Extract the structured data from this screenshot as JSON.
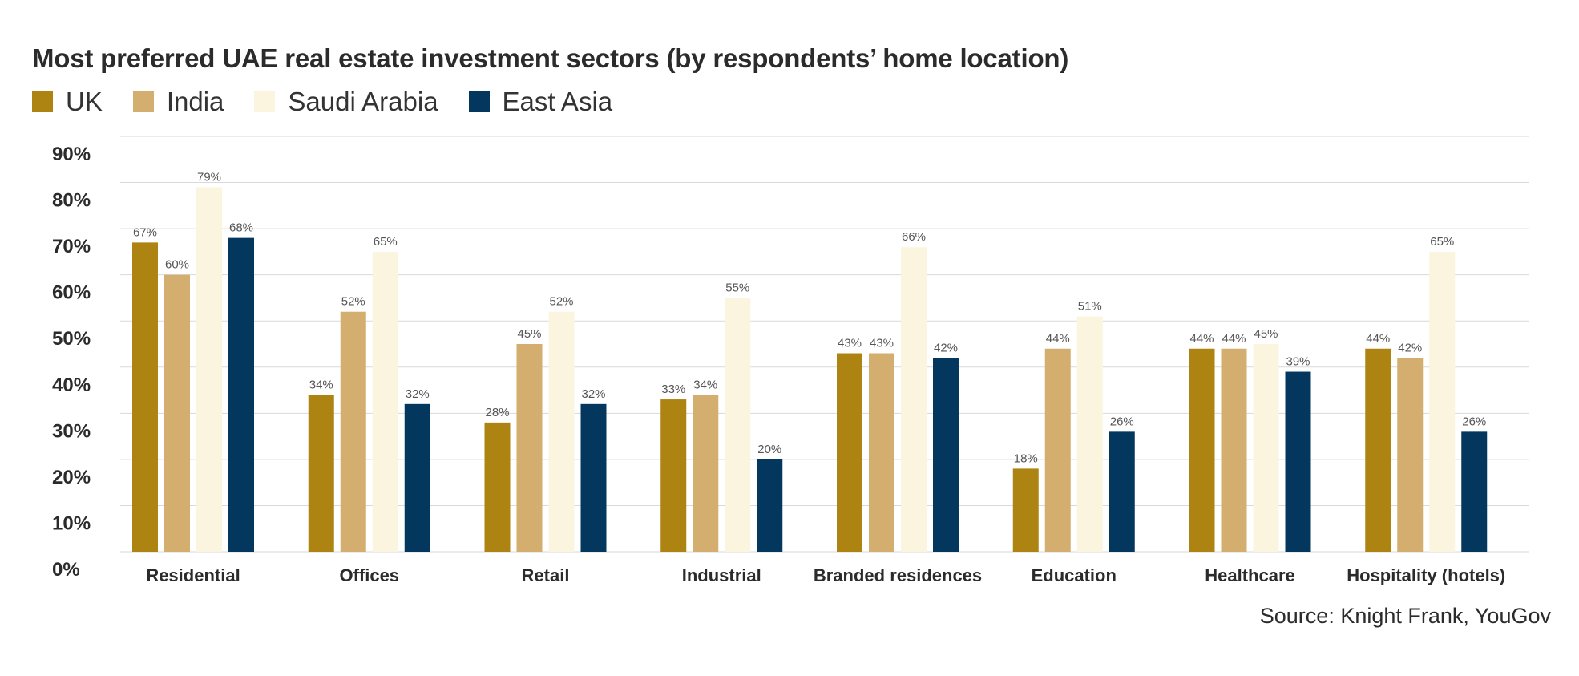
{
  "title": "Most preferred UAE real estate investment sectors  (by respondents’ home location)",
  "source": "Source: Knight Frank, YouGov",
  "colors": {
    "UK": "#ad8311",
    "India": "#d4ae6e",
    "Saudi Arabia": "#fbf5e0",
    "East Asia": "#04375e",
    "grid": "#d9d9d9",
    "text": "#2b2b2b",
    "value_label": "#555555"
  },
  "chart_data": {
    "type": "bar",
    "title": "Most preferred UAE real estate investment sectors  (by respondents’ home location)",
    "categories": [
      "Residential",
      "Offices",
      "Retail",
      "Industrial",
      "Branded residences",
      "Education",
      "Healthcare",
      "Hospitality (hotels)"
    ],
    "series": [
      {
        "name": "UK",
        "values": [
          67,
          34,
          28,
          33,
          43,
          18,
          44,
          44
        ]
      },
      {
        "name": "India",
        "values": [
          60,
          52,
          45,
          34,
          43,
          44,
          44,
          42
        ]
      },
      {
        "name": "Saudi Arabia",
        "values": [
          79,
          65,
          52,
          55,
          66,
          51,
          45,
          65
        ]
      },
      {
        "name": "East Asia",
        "values": [
          68,
          32,
          32,
          20,
          42,
          26,
          39,
          26
        ]
      }
    ],
    "ylim": [
      0,
      90
    ],
    "yticks": [
      "0%",
      "10%",
      "20%",
      "30%",
      "40%",
      "50%",
      "60%",
      "70%",
      "80%",
      "90%"
    ],
    "value_suffix": "%",
    "grid": true,
    "legend_position": "top-left"
  }
}
